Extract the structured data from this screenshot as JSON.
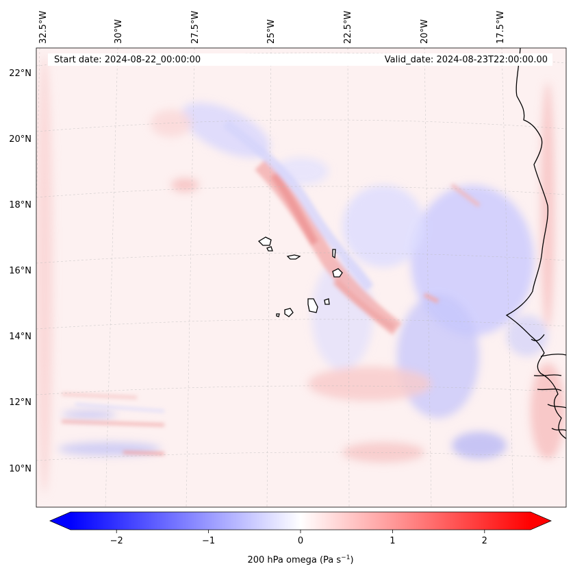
{
  "map": {
    "start_date": "Start date: 2024-08-22_00:00:00",
    "valid_date": "Valid_date: 2024-08-23T22:00:00.00",
    "lon_labels": [
      "32.5°W",
      "30°W",
      "27.5°W",
      "25°W",
      "22.5°W",
      "20°W",
      "17.5°W"
    ],
    "lat_labels": [
      "22°N",
      "20°N",
      "18°N",
      "16°N",
      "14°N",
      "12°N",
      "10°N"
    ],
    "field": "200 hPa omega",
    "region": "Cabo Verde and West African coast"
  },
  "colorbar": {
    "label": "200 hPa omega (Pa s",
    "label_sup": "−1",
    "label_end": ")",
    "ticks": [
      "−2",
      "−1",
      "0",
      "1",
      "2"
    ],
    "tick_values": [
      -2,
      -1,
      0,
      1,
      2
    ],
    "range": [
      -2.5,
      2.5
    ],
    "colormap": "bwr",
    "min_color": "#0000ff",
    "mid_color": "#ffffff",
    "max_color": "#ff0000"
  }
}
